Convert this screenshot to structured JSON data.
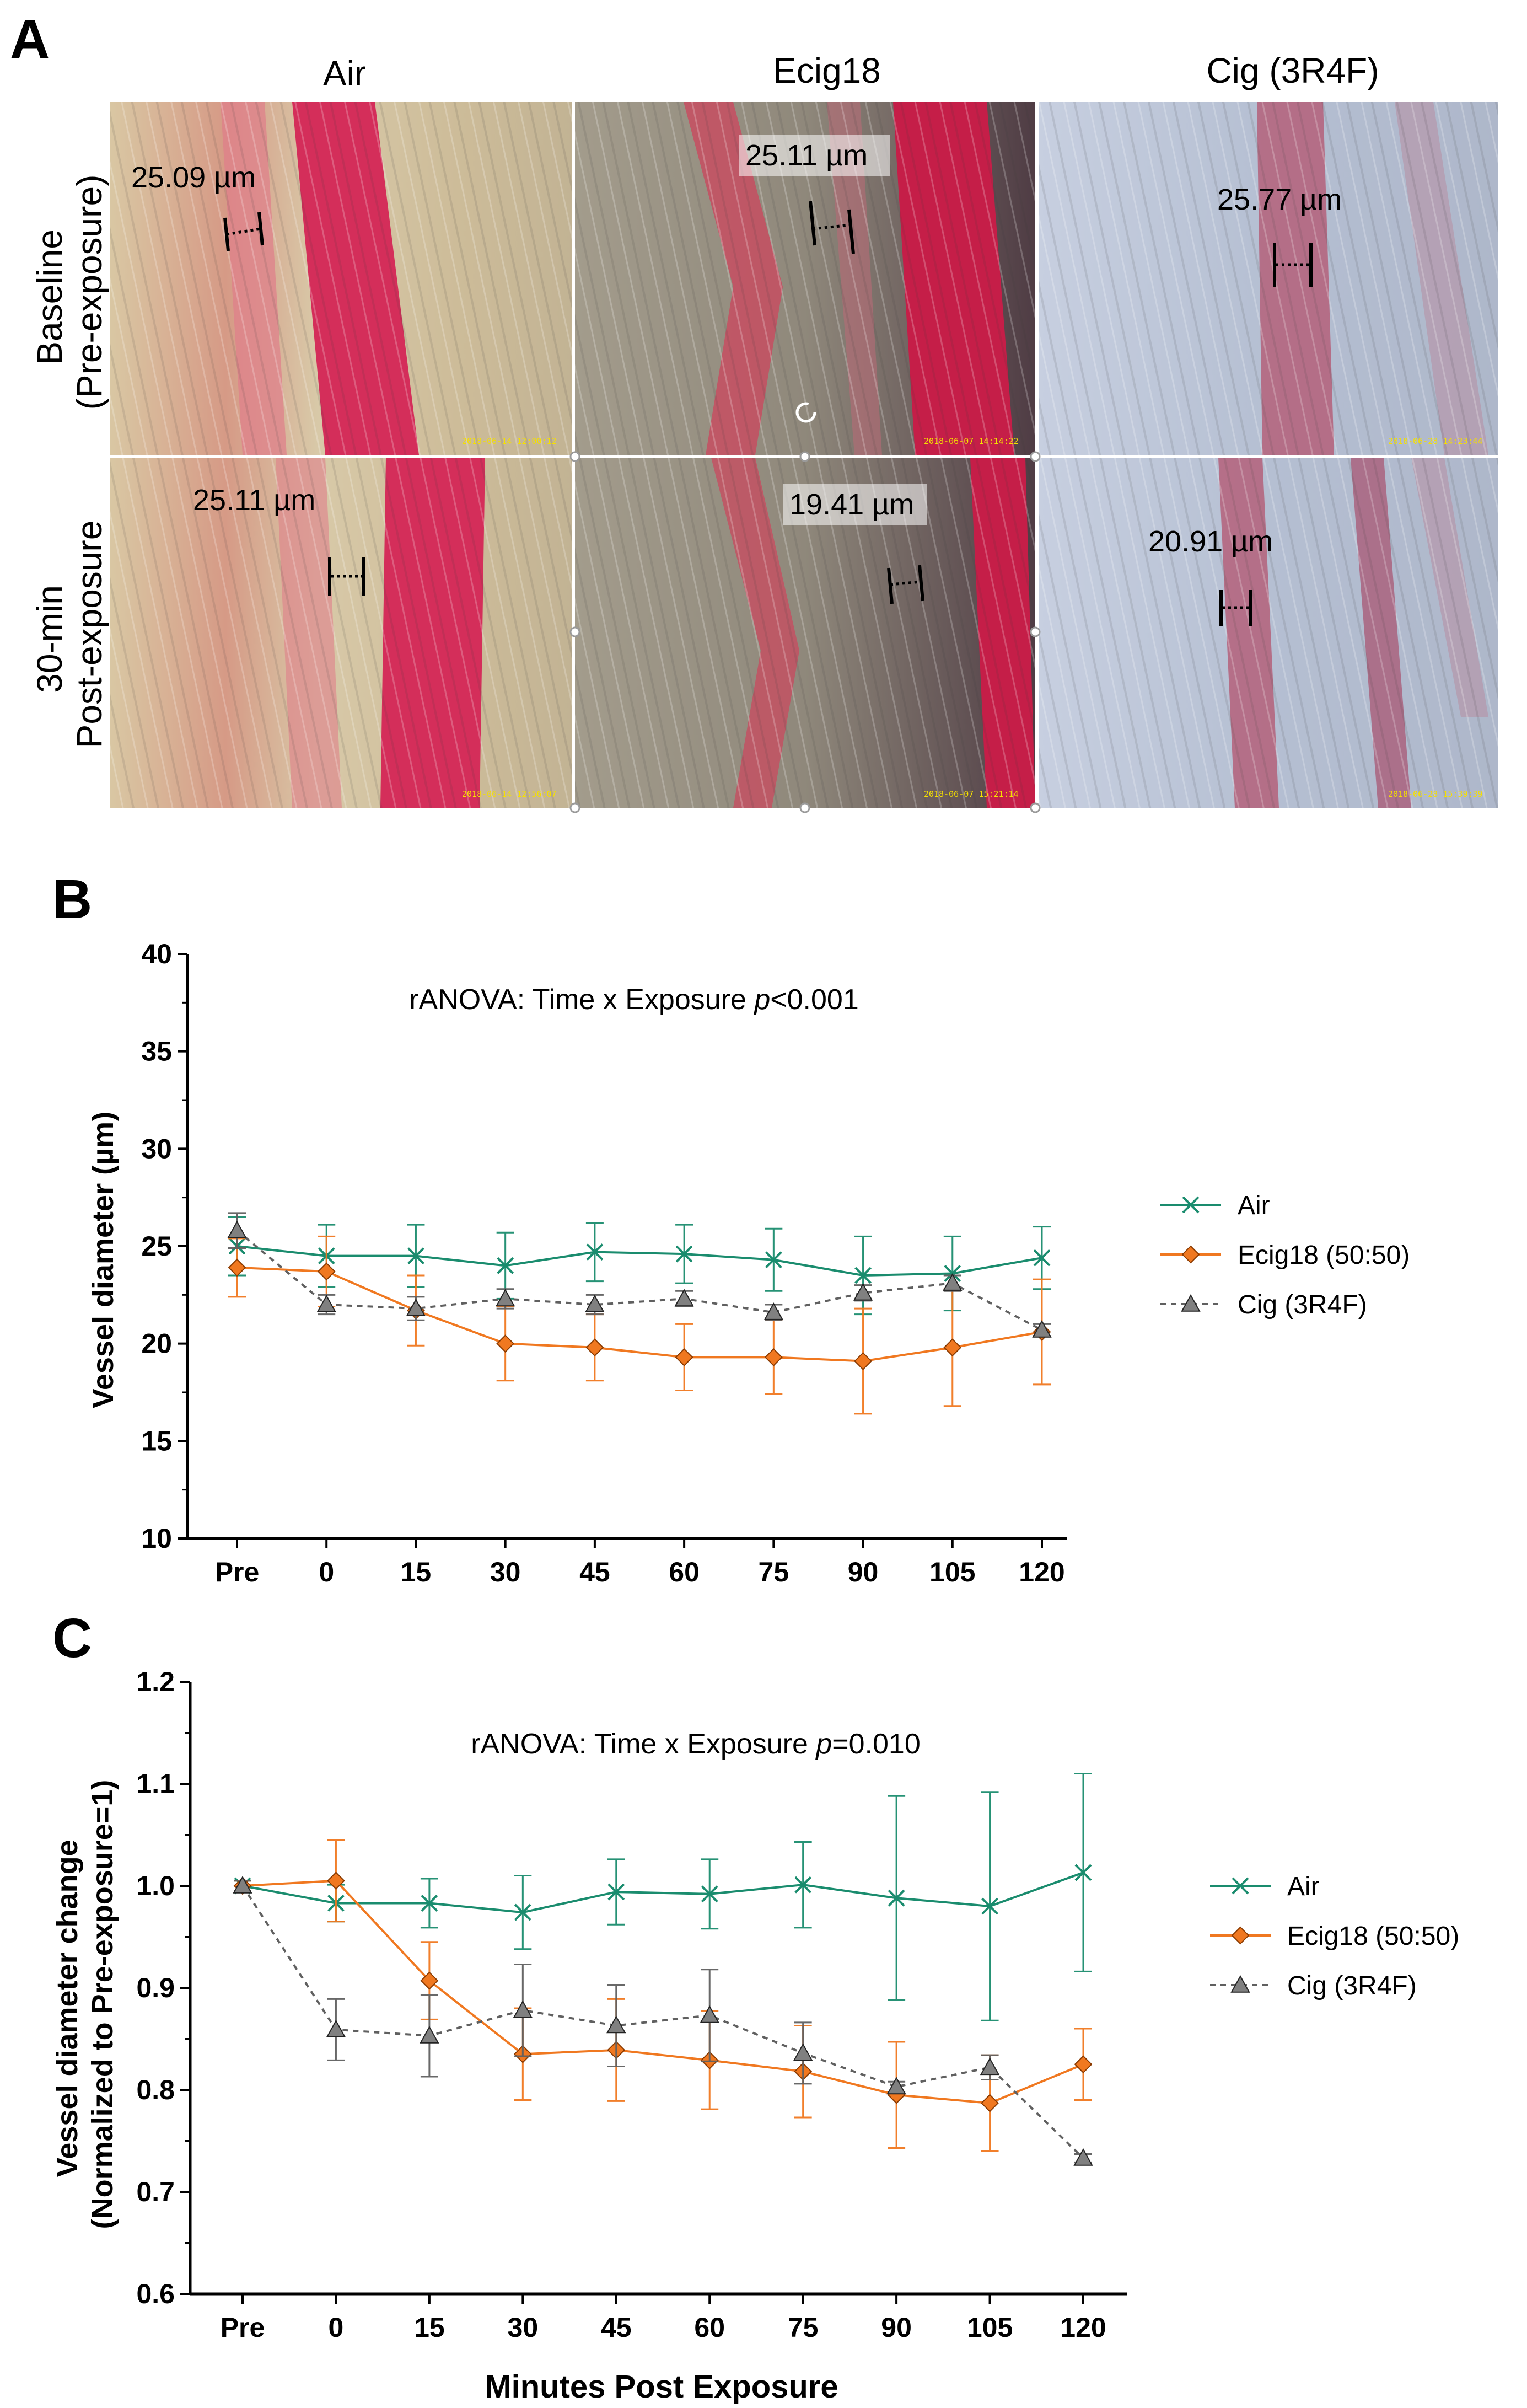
{
  "panel_a": {
    "letter": "A",
    "columns": [
      "Air",
      "Ecig18",
      "Cig (3R4F)"
    ],
    "rows": [
      "Baseline (Pre-exposure)",
      "30-min Post-exposure"
    ],
    "rows_split": [
      [
        "Baseline",
        "(Pre-exposure)"
      ],
      [
        "30-min",
        "Post-exposure"
      ]
    ],
    "measurements": [
      [
        "25.09 µm",
        "25.11 µm",
        "25.77 µm"
      ],
      [
        "25.11 µm",
        "19.41 µm",
        "20.91 µm"
      ]
    ],
    "stamps": [
      [
        "2018-06-14 12:00:12",
        "2018-06-07 14:14:22",
        "2018-06-28 14:23:44"
      ],
      [
        "2018-06-14 12:56:07",
        "2018-06-07 15:21:14",
        "2018-06-28 15:39:39"
      ]
    ]
  },
  "colors": {
    "air": "#1a8c6e",
    "ecig": "#f07820",
    "cig": "#606060",
    "cig_marker": "#808080"
  },
  "chart_data": [
    {
      "panel": "B",
      "type": "line",
      "title": "rANOVA: Time x Exposure p<0.001",
      "title_parts": [
        "rANOVA: Time x Exposure ",
        "p",
        "<0.001"
      ],
      "xlabel": "",
      "ylabel": "Vessel diameter (µm)",
      "categories": [
        "Pre",
        "0",
        "15",
        "30",
        "45",
        "60",
        "75",
        "90",
        "105",
        "120"
      ],
      "ylim": [
        10,
        40
      ],
      "yticks": [
        10,
        15,
        20,
        25,
        30,
        35,
        40
      ],
      "legend_position": "right",
      "series": [
        {
          "name": "Air",
          "marker": "x",
          "style": "solid",
          "values": [
            25.0,
            24.5,
            24.5,
            24.0,
            24.7,
            24.6,
            24.3,
            23.5,
            23.6,
            24.4
          ],
          "err": [
            1.5,
            1.6,
            1.6,
            1.7,
            1.5,
            1.5,
            1.6,
            2.0,
            1.9,
            1.6
          ]
        },
        {
          "name": "Ecig18 (50:50)",
          "marker": "diamond",
          "style": "solid",
          "values": [
            23.9,
            23.7,
            21.7,
            20.0,
            19.8,
            19.3,
            19.3,
            19.1,
            19.8,
            20.6
          ],
          "err": [
            1.5,
            1.8,
            1.8,
            1.9,
            1.7,
            1.7,
            1.9,
            2.7,
            3.0,
            2.7
          ]
        },
        {
          "name": "Cig (3R4F)",
          "marker": "triangle",
          "style": "dashed",
          "values": [
            25.8,
            22.0,
            21.8,
            22.3,
            22.0,
            22.3,
            21.6,
            22.6,
            23.1,
            20.7
          ],
          "err": [
            0.9,
            0.5,
            0.6,
            0.5,
            0.5,
            0.4,
            0.4,
            0.4,
            0.4,
            0.3
          ]
        }
      ]
    },
    {
      "panel": "C",
      "type": "line",
      "title": "rANOVA: Time x Exposure p=0.010",
      "title_parts": [
        "rANOVA: Time x Exposure ",
        "p",
        "=0.010"
      ],
      "xlabel": "Minutes Post Exposure",
      "ylabel": "Vessel diameter change (Normalized to Pre-exposure=1)",
      "ylabel_lines": [
        "Vessel diameter change",
        "(Normalized to Pre-exposure=1)"
      ],
      "categories": [
        "Pre",
        "0",
        "15",
        "30",
        "45",
        "60",
        "75",
        "90",
        "105",
        "120"
      ],
      "ylim": [
        0.6,
        1.2
      ],
      "yticks": [
        "0.6",
        "0.7",
        "0.8",
        "0.9",
        "1.0",
        "1.1",
        "1.2"
      ],
      "legend_position": "right",
      "series": [
        {
          "name": "Air",
          "marker": "x",
          "style": "solid",
          "values": [
            1.0,
            0.983,
            0.983,
            0.974,
            0.994,
            0.992,
            1.001,
            0.988,
            0.98,
            1.013
          ],
          "err": [
            0.005,
            0.018,
            0.024,
            0.036,
            0.032,
            0.034,
            0.042,
            0.1,
            0.112,
            0.097
          ]
        },
        {
          "name": "Ecig18 (50:50)",
          "marker": "diamond",
          "style": "solid",
          "values": [
            1.0,
            1.005,
            0.907,
            0.835,
            0.839,
            0.829,
            0.818,
            0.795,
            0.787,
            0.825
          ],
          "err": [
            0.005,
            0.04,
            0.038,
            0.045,
            0.05,
            0.048,
            0.045,
            0.052,
            0.047,
            0.035
          ]
        },
        {
          "name": "Cig (3R4F)",
          "marker": "triangle",
          "style": "dashed",
          "values": [
            1.0,
            0.859,
            0.853,
            0.878,
            0.863,
            0.873,
            0.836,
            0.803,
            0.822,
            0.733
          ],
          "err": [
            0.005,
            0.03,
            0.04,
            0.045,
            0.04,
            0.045,
            0.03,
            0.005,
            0.012,
            0.004
          ]
        }
      ]
    }
  ]
}
